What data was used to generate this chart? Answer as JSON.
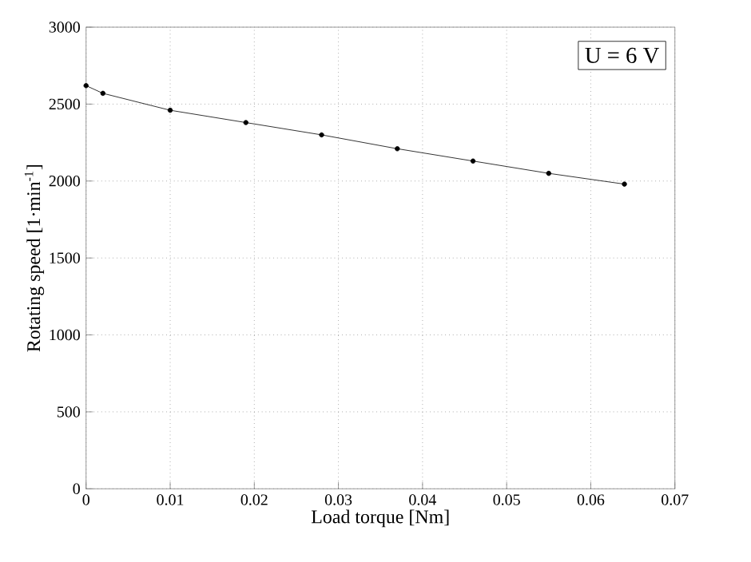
{
  "chart_data": {
    "type": "line",
    "xlabel": "Load torque [Nm]",
    "ylabel": "Rotating speed [1·min$^{-1}$]",
    "annotations": [
      "U = 6 V"
    ],
    "x": [
      0,
      0.002,
      0.01,
      0.019,
      0.028,
      0.037,
      0.046,
      0.055,
      0.064
    ],
    "series": [
      {
        "color": "#000000",
        "values": [
          2620,
          2570,
          2460,
          2380,
          2300,
          2210,
          2130,
          2050,
          1980
        ]
      }
    ],
    "xlim": [
      0,
      0.07
    ],
    "xticks": [
      0,
      0.01,
      0.02,
      0.03,
      0.04,
      0.05,
      0.06,
      0.07
    ],
    "ylim": [
      0,
      3000
    ],
    "yticks": [
      0,
      500,
      1000,
      1500,
      2000,
      2500,
      3000
    ],
    "grid": true,
    "marker": "circle",
    "line_style": "solid"
  }
}
